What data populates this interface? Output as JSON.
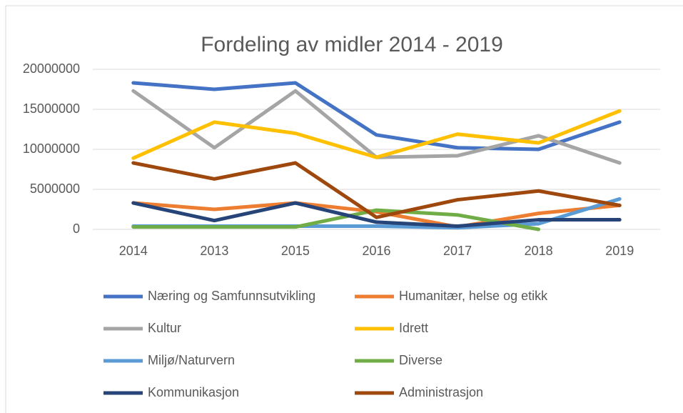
{
  "chart_data": {
    "type": "line",
    "title": "Fordeling av midler 2014 - 2019",
    "categories": [
      "2014",
      "2013",
      "2015",
      "2016",
      "2017",
      "2018",
      "2019"
    ],
    "series": [
      {
        "name": "Næring og Samfunnsutvikling",
        "color": "#4472c4",
        "values": [
          18300000,
          17500000,
          18300000,
          11800000,
          10200000,
          10000000,
          13400000
        ]
      },
      {
        "name": "Humanitær, helse og etikk",
        "color": "#ed7d31",
        "values": [
          3300000,
          2500000,
          3300000,
          2200000,
          300000,
          2000000,
          3000000
        ]
      },
      {
        "name": "Kultur",
        "color": "#a5a5a5",
        "values": [
          17300000,
          10200000,
          17300000,
          9000000,
          9200000,
          11700000,
          8300000
        ]
      },
      {
        "name": "Idrett",
        "color": "#ffc000",
        "values": [
          8900000,
          13400000,
          12000000,
          9000000,
          11900000,
          10800000,
          14800000
        ]
      },
      {
        "name": "Miljø/Naturvern",
        "color": "#5b9bd5",
        "values": [
          400000,
          400000,
          400000,
          400000,
          200000,
          700000,
          3800000
        ]
      },
      {
        "name": "Diverse",
        "color": "#70ad47",
        "values": [
          300000,
          300000,
          300000,
          2400000,
          1800000,
          0,
          null
        ]
      },
      {
        "name": "Kommunikasjon",
        "color": "#264478",
        "values": [
          3300000,
          1100000,
          3300000,
          900000,
          400000,
          1200000,
          1200000
        ]
      },
      {
        "name": "Administrasjon",
        "color": "#9e480e",
        "values": [
          8300000,
          6300000,
          8300000,
          1500000,
          3700000,
          4800000,
          3000000
        ]
      }
    ],
    "ylim": [
      0,
      20000000
    ],
    "yticks": [
      0,
      5000000,
      10000000,
      15000000,
      20000000
    ],
    "grid": true
  }
}
